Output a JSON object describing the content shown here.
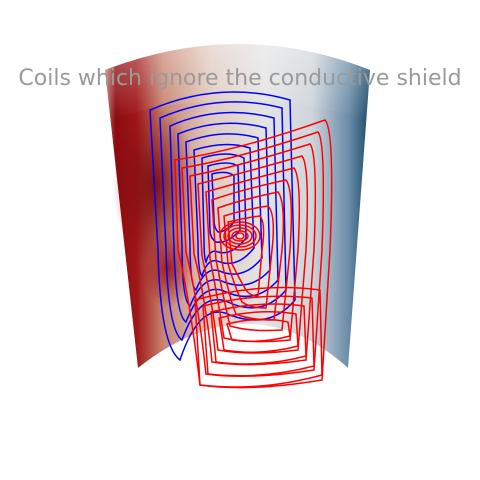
{
  "title": "Coils which ignore the conductive shield",
  "colors": {
    "background": "#ffffff",
    "title_text": "#9a9a9a",
    "shield_warm": "#8b0a10",
    "shield_cold": "#1a4a6a",
    "shield_neutral": "#d8d8d8",
    "coil_front": "#ff0000",
    "coil_back": "#0000ff"
  }
}
